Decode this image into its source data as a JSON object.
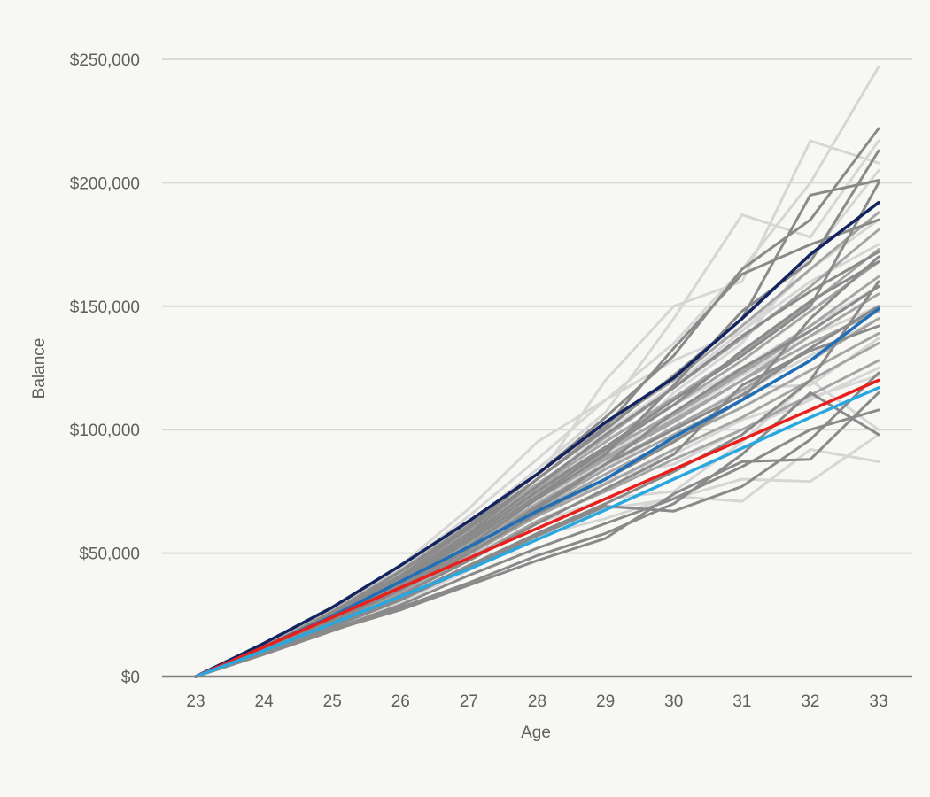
{
  "chart_data": {
    "type": "line",
    "title": "",
    "xlabel": "Age",
    "ylabel": "Balance",
    "x": [
      23,
      24,
      25,
      26,
      27,
      28,
      29,
      30,
      31,
      32,
      33
    ],
    "x_tick_labels": [
      "23",
      "24",
      "25",
      "26",
      "27",
      "28",
      "29",
      "30",
      "31",
      "32",
      "33"
    ],
    "ylim": [
      0,
      250000
    ],
    "y_ticks": [
      0,
      50000,
      100000,
      150000,
      200000,
      250000
    ],
    "y_tick_labels": [
      "$0",
      "$50,000",
      "$100,000",
      "$150,000",
      "$200,000",
      "$250,000"
    ],
    "grid": "horizontal",
    "legend": "none",
    "colors": {
      "navy": "#14245f",
      "blue": "#1f6fb8",
      "red": "#e8201c",
      "light_blue": "#29a8e0",
      "gray_dark": "#8a8a8a",
      "gray_mid": "#a5a5a5",
      "gray_light": "#d6d6d6",
      "grid": "#d9d9d9",
      "axis": "#7f7f7f"
    },
    "simulation_series": [
      {
        "color": "gray_light",
        "values": [
          0,
          12000,
          27000,
          44000,
          65000,
          88000,
          112000,
          135000,
          165000,
          200000,
          247000
        ]
      },
      {
        "color": "gray_light",
        "values": [
          0,
          11500,
          25000,
          41000,
          62000,
          84000,
          107000,
          145000,
          187000,
          178000,
          217000
        ]
      },
      {
        "color": "gray_light",
        "values": [
          0,
          10800,
          23500,
          38000,
          56000,
          80000,
          120000,
          150000,
          160000,
          217000,
          208000
        ]
      },
      {
        "color": "gray_light",
        "values": [
          0,
          10500,
          22000,
          36000,
          52000,
          70000,
          88000,
          115000,
          135000,
          170000,
          205000
        ]
      },
      {
        "color": "gray_light",
        "values": [
          0,
          10000,
          21000,
          33000,
          47000,
          62000,
          72000,
          75000,
          95000,
          120000,
          100000
        ]
      },
      {
        "color": "gray_light",
        "values": [
          0,
          9500,
          20000,
          31000,
          44000,
          58000,
          68000,
          72000,
          80000,
          79000,
          98000
        ]
      },
      {
        "color": "gray_light",
        "values": [
          0,
          9200,
          19500,
          30000,
          43000,
          57000,
          64000,
          73000,
          71000,
          92000,
          87000
        ]
      },
      {
        "color": "gray_light",
        "values": [
          0,
          11000,
          24000,
          38000,
          54000,
          70000,
          85000,
          100000,
          115000,
          130000,
          145000
        ]
      },
      {
        "color": "gray_light",
        "values": [
          0,
          10000,
          22500,
          35000,
          50000,
          68000,
          80000,
          86000,
          100000,
          112000,
          125000
        ]
      },
      {
        "color": "gray_light",
        "values": [
          0,
          12500,
          28000,
          45000,
          68000,
          95000,
          112000,
          128000,
          140000,
          160000,
          175000
        ]
      },
      {
        "color": "gray_light",
        "values": [
          0,
          11800,
          26000,
          42000,
          60000,
          78000,
          96000,
          110000,
          125000,
          142000,
          158000
        ]
      },
      {
        "color": "gray_light",
        "values": [
          0,
          10200,
          23000,
          37000,
          53000,
          71000,
          87000,
          100000,
          117000,
          118000,
          137000
        ]
      },
      {
        "color": "gray_light",
        "values": [
          0,
          11400,
          25500,
          40500,
          58000,
          77000,
          99000,
          118000,
          140000,
          165000,
          185000
        ]
      },
      {
        "color": "gray_light",
        "values": [
          0,
          10900,
          24500,
          39000,
          56000,
          74000,
          90000,
          105000,
          122000,
          138000,
          150000
        ]
      },
      {
        "color": "gray_light",
        "values": [
          0,
          9800,
          21500,
          34000,
          49000,
          66000,
          79000,
          90000,
          104000,
          113000,
          122000
        ]
      },
      {
        "color": "gray_mid",
        "values": [
          0,
          11500,
          25500,
          41000,
          59000,
          78000,
          97000,
          117000,
          137000,
          158000,
          181000
        ]
      },
      {
        "color": "gray_mid",
        "values": [
          0,
          11000,
          24500,
          39500,
          57000,
          76000,
          93000,
          110000,
          128000,
          148000,
          168000
        ]
      },
      {
        "color": "gray_mid",
        "values": [
          0,
          10500,
          23500,
          37500,
          54000,
          72000,
          88000,
          103000,
          120000,
          138000,
          155000
        ]
      },
      {
        "color": "gray_mid",
        "values": [
          0,
          10200,
          22500,
          36000,
          52000,
          68000,
          84000,
          98000,
          112000,
          128000,
          145000
        ]
      },
      {
        "color": "gray_mid",
        "values": [
          0,
          9900,
          21500,
          34500,
          49500,
          65000,
          78000,
          92000,
          105000,
          120000,
          135000
        ]
      },
      {
        "color": "gray_mid",
        "values": [
          0,
          12000,
          26500,
          43000,
          62000,
          82000,
          102000,
          120000,
          142000,
          165000,
          188000
        ]
      },
      {
        "color": "gray_mid",
        "values": [
          0,
          10700,
          24000,
          38500,
          55500,
          74000,
          91000,
          107000,
          124000,
          142000,
          162000
        ]
      },
      {
        "color": "gray_mid",
        "values": [
          0,
          10300,
          23000,
          37000,
          53000,
          70000,
          86000,
          101000,
          116000,
          133000,
          150000
        ]
      },
      {
        "color": "gray_mid",
        "values": [
          0,
          9700,
          21000,
          33500,
          48000,
          63000,
          75000,
          88000,
          100000,
          114000,
          128000
        ]
      },
      {
        "color": "gray_mid",
        "values": [
          0,
          11300,
          25000,
          40000,
          58000,
          77000,
          95000,
          113000,
          131000,
          151000,
          173000
        ]
      },
      {
        "color": "gray_mid",
        "values": [
          0,
          10100,
          22000,
          35500,
          51000,
          67000,
          82000,
          96000,
          109000,
          124000,
          139000
        ]
      },
      {
        "color": "gray_mid",
        "values": [
          0,
          10600,
          23800,
          38000,
          55000,
          73000,
          89000,
          104000,
          120000,
          135000,
          148000
        ]
      },
      {
        "color": "gray_mid",
        "values": [
          0,
          10900,
          24200,
          39000,
          56500,
          75000,
          92000,
          106000,
          123000,
          140000,
          158000
        ]
      },
      {
        "color": "gray_dark",
        "values": [
          0,
          11800,
          26000,
          42500,
          61000,
          82000,
          105000,
          130000,
          165000,
          185000,
          222000
        ]
      },
      {
        "color": "gray_dark",
        "values": [
          0,
          11200,
          25000,
          40000,
          58000,
          80000,
          100000,
          122000,
          145000,
          195000,
          201000
        ]
      },
      {
        "color": "gray_dark",
        "values": [
          0,
          10900,
          24000,
          38500,
          56000,
          75000,
          93000,
          112000,
          130000,
          150000,
          200000
        ]
      },
      {
        "color": "gray_dark",
        "values": [
          0,
          10400,
          23000,
          37000,
          53000,
          72000,
          90000,
          118000,
          148000,
          168000,
          213000
        ]
      },
      {
        "color": "gray_dark",
        "values": [
          0,
          10000,
          22000,
          35000,
          50000,
          66000,
          80000,
          95000,
          112000,
          145000,
          170000
        ]
      },
      {
        "color": "gray_dark",
        "values": [
          0,
          9600,
          20500,
          32000,
          45000,
          58000,
          70000,
          83000,
          98000,
          120000,
          160000
        ]
      },
      {
        "color": "gray_dark",
        "values": [
          0,
          9300,
          19000,
          29000,
          41000,
          52000,
          62000,
          72000,
          85000,
          100000,
          108000
        ]
      },
      {
        "color": "gray_dark",
        "values": [
          0,
          9000,
          18500,
          28000,
          38000,
          49000,
          58000,
          70000,
          90000,
          115000,
          98000
        ]
      },
      {
        "color": "gray_dark",
        "values": [
          0,
          9100,
          18800,
          27000,
          37000,
          47000,
          56000,
          74000,
          87000,
          88000,
          115000
        ]
      },
      {
        "color": "gray_dark",
        "values": [
          0,
          10200,
          22500,
          36500,
          52000,
          68000,
          86000,
          107000,
          125000,
          140000,
          158000
        ]
      },
      {
        "color": "gray_dark",
        "values": [
          0,
          9800,
          21000,
          33000,
          47000,
          62000,
          76000,
          90000,
          118000,
          132000,
          142000
        ]
      },
      {
        "color": "gray_dark",
        "values": [
          0,
          10600,
          23500,
          38000,
          55000,
          73000,
          92000,
          110000,
          132000,
          152000,
          168000
        ]
      },
      {
        "color": "gray_dark",
        "values": [
          0,
          9400,
          20000,
          31000,
          44000,
          57000,
          69000,
          67000,
          77000,
          96000,
          123000
        ]
      },
      {
        "color": "gray_dark",
        "values": [
          0,
          10800,
          24300,
          39500,
          57000,
          77000,
          98000,
          117000,
          138000,
          156000,
          172000
        ]
      },
      {
        "color": "gray_dark",
        "values": [
          0,
          10300,
          22700,
          36000,
          51500,
          69000,
          86000,
          100000,
          114000,
          133000,
          150000
        ]
      },
      {
        "color": "gray_dark",
        "values": [
          0,
          11500,
          25300,
          41000,
          60000,
          80000,
          101000,
          133000,
          163000,
          175000,
          185000
        ]
      }
    ],
    "series": [
      {
        "name": "navy",
        "color": "navy",
        "values": [
          0,
          13500,
          28000,
          45000,
          63000,
          82000,
          103000,
          121000,
          145000,
          171000,
          192000
        ]
      },
      {
        "name": "blue",
        "color": "blue",
        "values": [
          0,
          12000,
          24500,
          38500,
          52500,
          67000,
          80000,
          97000,
          112000,
          128000,
          149000
        ]
      },
      {
        "name": "red",
        "color": "red",
        "values": [
          0,
          12000,
          24000,
          36000,
          48000,
          60000,
          72000,
          84000,
          96000,
          108000,
          120000
        ]
      },
      {
        "name": "light-blue",
        "color": "light_blue",
        "values": [
          0,
          10500,
          21500,
          32500,
          43500,
          55500,
          67500,
          80000,
          92500,
          105000,
          117000
        ]
      }
    ]
  }
}
